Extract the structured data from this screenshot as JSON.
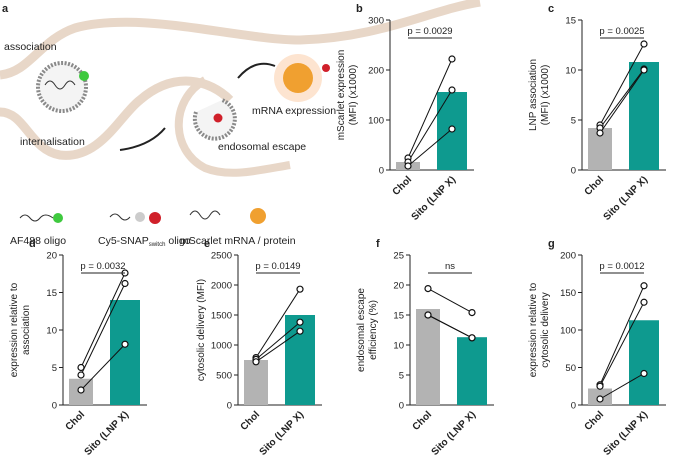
{
  "schematic": {
    "panel": "a",
    "labels": [
      "association",
      "internalisation",
      "endosomal escape",
      "mRNA expression"
    ],
    "legend": [
      "AF488 oligo",
      [
        "Cy5-SNAP",
        "switch",
        " oligo"
      ],
      "mScarlet mRNA / protein"
    ]
  },
  "chart_data": [
    {
      "type": "bar",
      "panel": "b",
      "ylabel": [
        "mScarlet expression",
        "(MFI) (x1000)"
      ],
      "categories": [
        "Chol",
        "Sito (LNP X)"
      ],
      "values": [
        16,
        156
      ],
      "replicates": [
        [
          24,
          222
        ],
        [
          16,
          160
        ],
        [
          8,
          82
        ]
      ],
      "colors": [
        "#b3b3b3",
        "#0e9a8f"
      ],
      "annotation": "p = 0.0029",
      "ylim": [
        0,
        300
      ],
      "yticks": [
        0,
        100,
        200,
        300
      ]
    },
    {
      "type": "bar",
      "panel": "c",
      "ylabel": [
        "LNP association",
        "(MFI) (x1000)"
      ],
      "categories": [
        "Chol",
        "Sito (LNP X)"
      ],
      "values": [
        4.2,
        10.8
      ],
      "replicates": [
        [
          4.5,
          12.6
        ],
        [
          4.2,
          10.1
        ],
        [
          3.7,
          10.0
        ]
      ],
      "colors": [
        "#b3b3b3",
        "#0e9a8f"
      ],
      "annotation": "p = 0.0025",
      "ylim": [
        0,
        15
      ],
      "yticks": [
        0,
        5,
        10,
        15
      ]
    },
    {
      "type": "bar",
      "panel": "d",
      "ylabel": [
        "expression relative to",
        "association"
      ],
      "categories": [
        "Chol",
        "Sito (LNP X)"
      ],
      "values": [
        3.5,
        14
      ],
      "replicates": [
        [
          5,
          17.6
        ],
        [
          4,
          16.2
        ],
        [
          2,
          8.1
        ]
      ],
      "colors": [
        "#b3b3b3",
        "#0e9a8f"
      ],
      "annotation": "p = 0.0032",
      "ylim": [
        0,
        20
      ],
      "yticks": [
        0,
        5,
        10,
        15,
        20
      ]
    },
    {
      "type": "bar",
      "panel": "e",
      "ylabel": [
        "cytosolic delivery (MFI)"
      ],
      "categories": [
        "Chol",
        "Sito (LNP X)"
      ],
      "values": [
        750,
        1500
      ],
      "replicates": [
        [
          790,
          1930
        ],
        [
          760,
          1380
        ],
        [
          720,
          1230
        ]
      ],
      "colors": [
        "#b3b3b3",
        "#0e9a8f"
      ],
      "annotation": "p = 0.0149",
      "ylim": [
        0,
        2500
      ],
      "yticks": [
        0,
        500,
        1000,
        1500,
        2000,
        2500
      ]
    },
    {
      "type": "bar",
      "panel": "f",
      "ylabel": [
        "endosomal escape",
        "efficiency (%)"
      ],
      "categories": [
        "Chol",
        "Sito (LNP X)"
      ],
      "values": [
        16,
        11.3
      ],
      "replicates": [
        [
          19.4,
          15.4
        ],
        [
          15.0,
          11.2
        ],
        [
          15.0,
          11.2
        ]
      ],
      "colors": [
        "#b3b3b3",
        "#0e9a8f"
      ],
      "annotation": "ns",
      "ylim": [
        0,
        25
      ],
      "yticks": [
        0,
        5,
        10,
        15,
        20,
        25
      ]
    },
    {
      "type": "bar",
      "panel": "g",
      "ylabel": [
        "expression relative to",
        "cytosolic delivery"
      ],
      "categories": [
        "Chol",
        "Sito (LNP X)"
      ],
      "values": [
        22,
        113
      ],
      "replicates": [
        [
          27,
          159
        ],
        [
          25,
          137
        ],
        [
          8,
          42
        ]
      ],
      "colors": [
        "#b3b3b3",
        "#0e9a8f"
      ],
      "annotation": "p = 0.0012",
      "ylim": [
        0,
        200
      ],
      "yticks": [
        0,
        50,
        100,
        150,
        200
      ]
    }
  ]
}
